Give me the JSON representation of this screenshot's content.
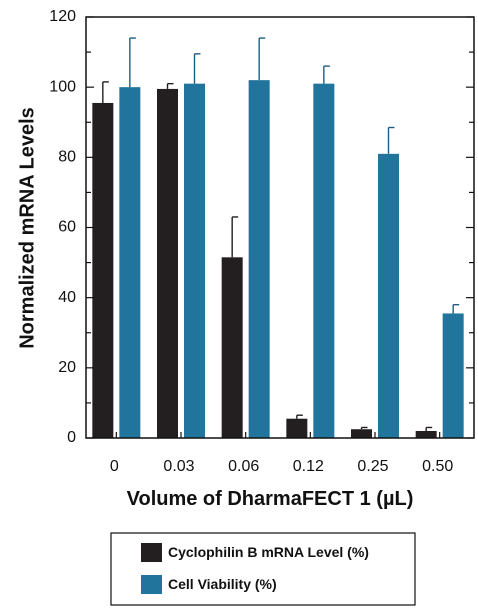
{
  "chart_data": {
    "type": "bar",
    "xlabel": "Volume of DharmaFECT 1 (µL)",
    "ylabel": "Normalized mRNA Levels",
    "categories": [
      "0",
      "0.03",
      "0.06",
      "0.12",
      "0.25",
      "0.50"
    ],
    "ylim": [
      0,
      120
    ],
    "yticks": [
      "0",
      "20",
      "40",
      "60",
      "80",
      "100",
      "120"
    ],
    "grid": false,
    "legend_position": "bottom",
    "series": [
      {
        "name": "Cyclophilin B mRNA Level (%)",
        "color": "#231f20",
        "values": [
          95.5,
          99.5,
          51.5,
          5.5,
          2.5,
          2
        ],
        "errors": [
          6,
          1.5,
          11.5,
          1,
          0.5,
          1
        ]
      },
      {
        "name": "Cell Viability (%)",
        "color": "#21749c",
        "values": [
          100,
          101,
          102,
          101,
          81,
          35.5
        ],
        "errors": [
          14,
          8.5,
          12,
          5,
          7.5,
          2.5
        ]
      }
    ]
  }
}
